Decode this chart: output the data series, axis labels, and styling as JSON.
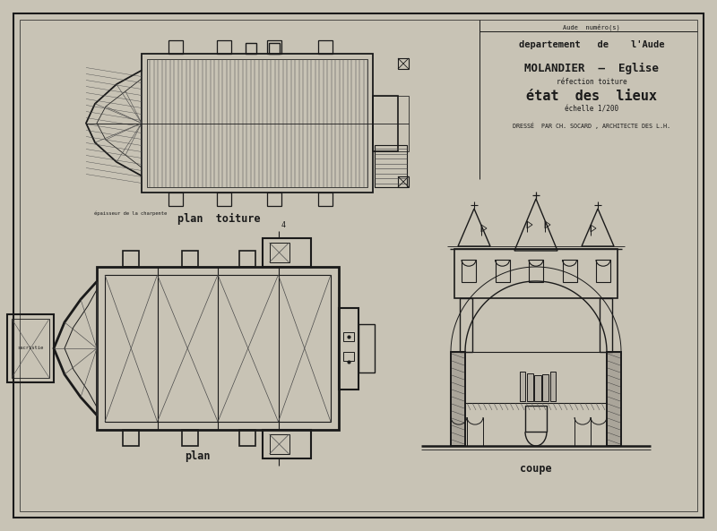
{
  "bg_color": "#c8c3b5",
  "paper_color": "#cec9ba",
  "line_color": "#1a1a1a",
  "hatch_color": "#4a4a4a",
  "wall_fill": "#aaa59a",
  "title_ref": "Aude  numéro(s)",
  "title_line1": "departement   de    l'Aude",
  "title_line2": "MOLANDIER  —  Eglise",
  "title_line3": "réfection toiture",
  "title_line4": "état  des  lieux",
  "title_line5": "échelle 1/200",
  "title_line6": "DRESSÉ  PAR CH. SOCARD , ARCHITECTE DES L.H.",
  "label_plan_toiture": "plan  toiture",
  "label_plan": "plan",
  "label_coupe": "coupe",
  "small_note": "épaisseur de la charpente"
}
